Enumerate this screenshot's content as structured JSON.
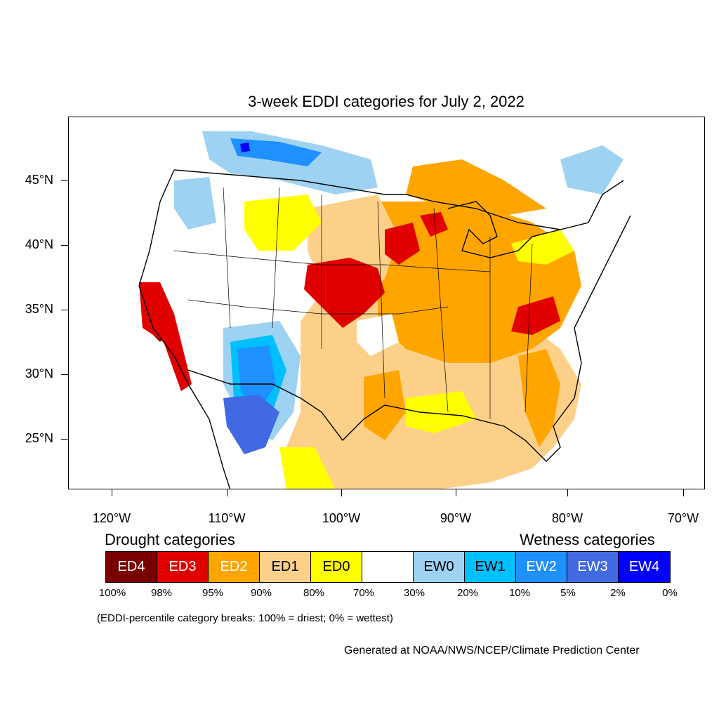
{
  "title": "3-week EDDI categories for July 2, 2022",
  "lat_labels": [
    "45°N",
    "40°N",
    "35°N",
    "30°N",
    "25°N"
  ],
  "lon_labels": [
    "120°W",
    "110°W",
    "100°W",
    "90°W",
    "80°W",
    "70°W"
  ],
  "legend": {
    "drought_heading": "Drought categories",
    "wetness_heading": "Wetness categories",
    "categories": [
      {
        "label": "ED4",
        "color": "#7a0000",
        "text_color": "#ffffff"
      },
      {
        "label": "ED3",
        "color": "#e00000",
        "text_color": "#ffffff"
      },
      {
        "label": "ED2",
        "color": "#ffa500",
        "text_color": "#ffffff"
      },
      {
        "label": "ED1",
        "color": "#fdd08a",
        "text_color": "#000000"
      },
      {
        "label": "ED0",
        "color": "#ffff00",
        "text_color": "#000000"
      },
      {
        "label": "",
        "color": "#ffffff",
        "text_color": "#000000"
      },
      {
        "label": "EW0",
        "color": "#9dd2f2",
        "text_color": "#000000"
      },
      {
        "label": "EW1",
        "color": "#00bfff",
        "text_color": "#000000"
      },
      {
        "label": "EW2",
        "color": "#1e90ff",
        "text_color": "#ffffff"
      },
      {
        "label": "EW3",
        "color": "#4169e1",
        "text_color": "#ffffff"
      },
      {
        "label": "EW4",
        "color": "#0000ff",
        "text_color": "#ffffff"
      }
    ],
    "percentiles": [
      "100%",
      "98%",
      "95%",
      "90%",
      "80%",
      "70%",
      "30%",
      "20%",
      "10%",
      "5%",
      "2%",
      "0%"
    ]
  },
  "note": "(EDDI-percentile category breaks: 100% = driest; 0% = wettest)",
  "credit": "Generated at NOAA/NWS/NCEP/Climate Prediction Center"
}
